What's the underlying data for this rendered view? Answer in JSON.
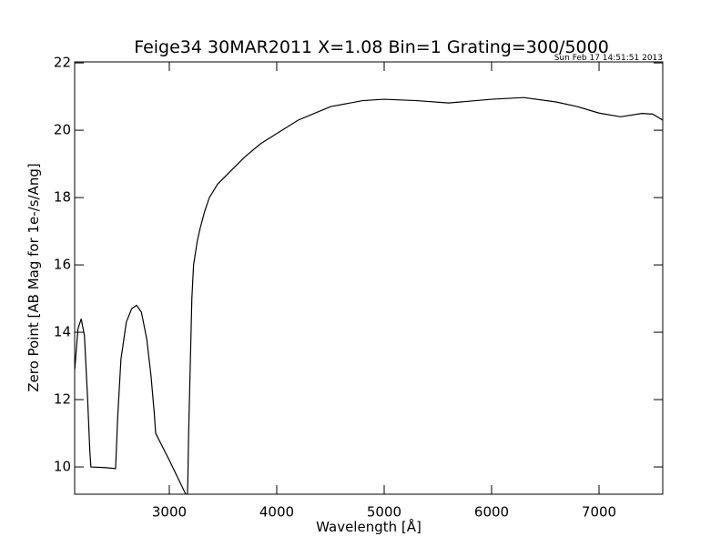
{
  "chart_data": {
    "type": "line",
    "title": "Feige34 30MAR2011 X=1.08 Bin=1 Grating=300/5000",
    "timestamp": "Sun Feb 17 14:51:51 2013",
    "x_label": "Wavelength [Å]",
    "y_label": "Zero Point [AB Mag for 1e-/s/Ang]",
    "x": [
      2120,
      2150,
      2180,
      2210,
      2240,
      2260,
      2270,
      2400,
      2500,
      2520,
      2550,
      2600,
      2650,
      2695,
      2740,
      2790,
      2830,
      2860,
      2873,
      3000,
      3153,
      3165,
      3172,
      3180,
      3195,
      3210,
      3226,
      3260,
      3288,
      3330,
      3373,
      3450,
      3543,
      3700,
      3850,
      4000,
      4200,
      4500,
      4800,
      5000,
      5300,
      5600,
      6000,
      6300,
      6600,
      6800,
      7000,
      7200,
      7400,
      7500,
      7593
    ],
    "values": [
      12.9,
      14.1,
      14.4,
      13.9,
      12.0,
      10.5,
      10.0,
      9.98,
      9.95,
      11.5,
      13.2,
      14.3,
      14.7,
      14.8,
      14.6,
      13.8,
      12.7,
      11.6,
      11.0,
      10.2,
      9.19,
      8.9,
      9.5,
      11.0,
      13.0,
      15.0,
      16.0,
      16.7,
      17.1,
      17.6,
      18.0,
      18.4,
      18.7,
      19.2,
      19.6,
      19.9,
      20.3,
      20.7,
      20.88,
      20.92,
      20.88,
      20.81,
      20.92,
      20.97,
      20.84,
      20.7,
      20.51,
      20.4,
      20.5,
      20.48,
      20.3
    ],
    "color": "#000000",
    "xlim": [
      2119,
      7593
    ],
    "ylim": [
      9.19,
      22.03
    ],
    "xticks": [
      3000,
      4000,
      5000,
      6000,
      7000
    ],
    "yticks": [
      10,
      12,
      14,
      16,
      18,
      20,
      22
    ]
  }
}
